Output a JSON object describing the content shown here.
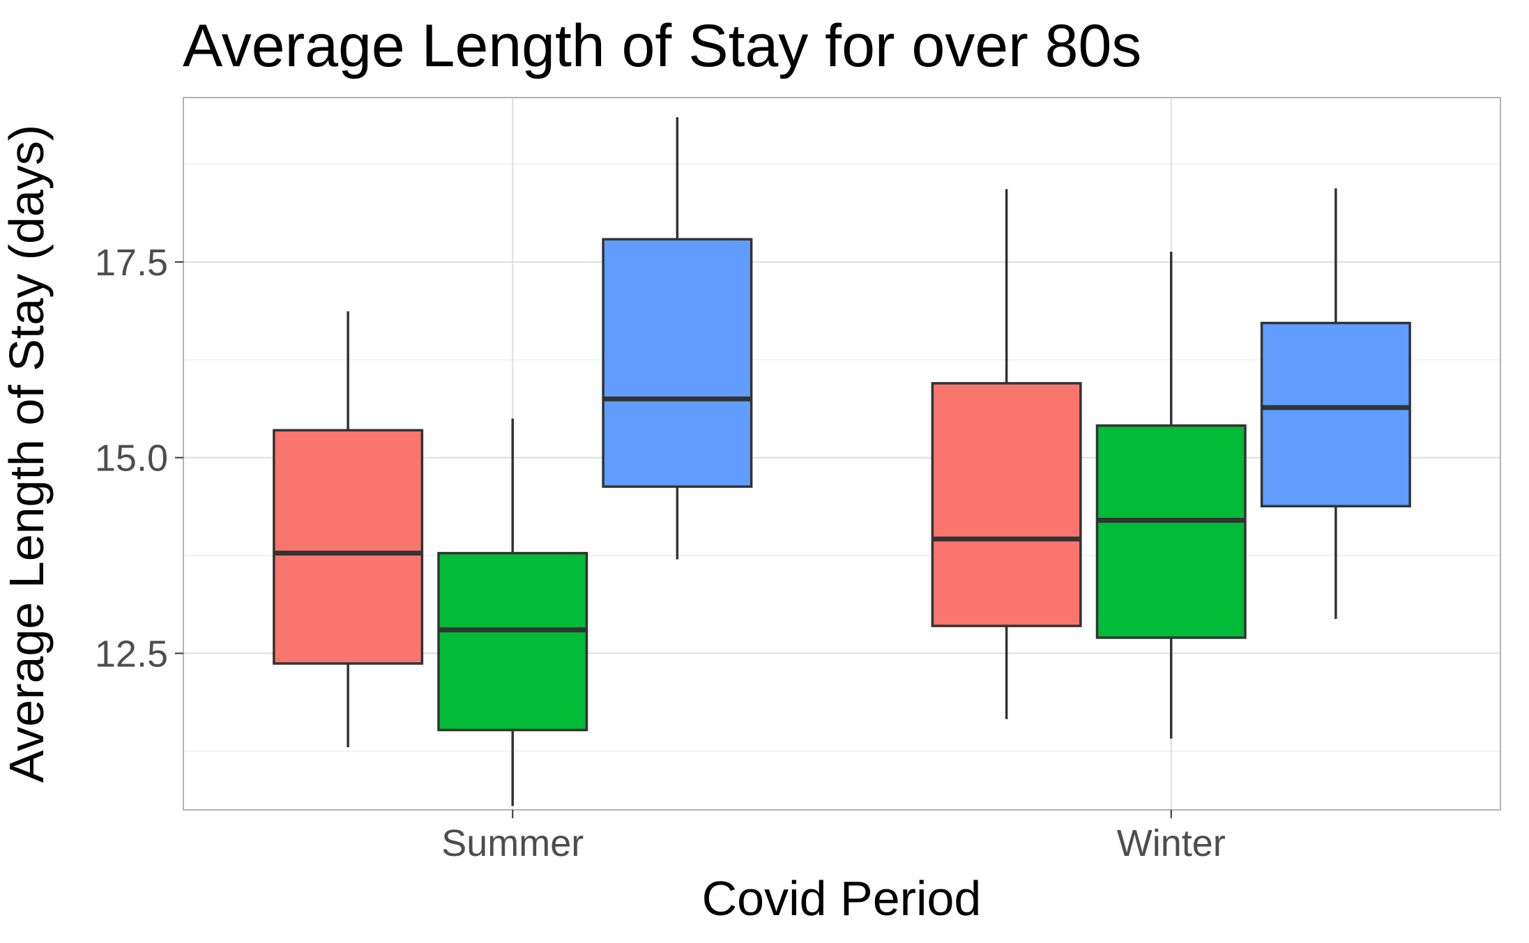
{
  "chart_data": {
    "type": "boxplot",
    "title": "Average Length of Stay for over 80s",
    "xlabel": "Covid Period",
    "ylabel": "Average Length of Stay (days)",
    "categories": [
      "Summer",
      "Winter"
    ],
    "ylim": [
      10.5,
      19.6
    ],
    "yticks": [
      12.5,
      15.0,
      17.5
    ],
    "grid": true,
    "legend": "none",
    "series": [
      {
        "color": "#F8766D",
        "boxes": [
          {
            "category": "Summer",
            "min": 11.3,
            "q1": 12.37,
            "median": 13.78,
            "q3": 15.35,
            "max": 16.87
          },
          {
            "category": "Winter",
            "min": 11.66,
            "q1": 12.85,
            "median": 13.96,
            "q3": 15.95,
            "max": 18.43
          }
        ]
      },
      {
        "color": "#00BA38",
        "boxes": [
          {
            "category": "Summer",
            "min": 10.55,
            "q1": 11.52,
            "median": 12.8,
            "q3": 13.78,
            "max": 15.5
          },
          {
            "category": "Winter",
            "min": 11.41,
            "q1": 12.7,
            "median": 14.2,
            "q3": 15.41,
            "max": 17.63
          }
        ]
      },
      {
        "color": "#619CFF",
        "boxes": [
          {
            "category": "Summer",
            "min": 13.7,
            "q1": 14.63,
            "median": 15.75,
            "q3": 17.79,
            "max": 19.35
          },
          {
            "category": "Winter",
            "min": 12.94,
            "q1": 14.38,
            "median": 15.64,
            "q3": 16.72,
            "max": 18.44
          }
        ]
      }
    ]
  }
}
